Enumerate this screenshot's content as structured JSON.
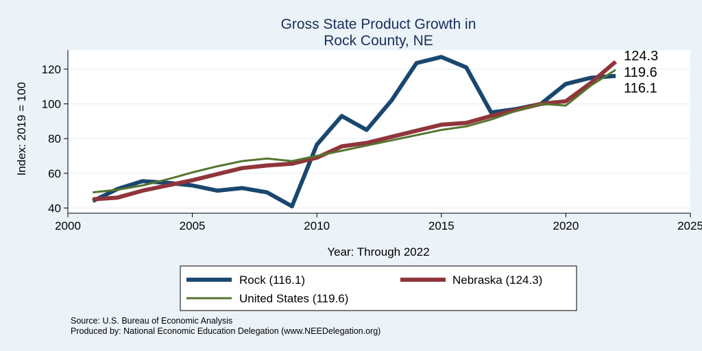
{
  "chart_data": {
    "type": "line",
    "title": [
      "Gross State Product Growth in",
      "Rock County, NE"
    ],
    "xlabel": "Year: Through 2022",
    "ylabel": "Index: 2019 = 100",
    "xlim": [
      2000,
      2025
    ],
    "ylim": [
      37,
      131
    ],
    "xticks": [
      "2000",
      "2005",
      "2010",
      "2015",
      "2020",
      "2025"
    ],
    "yticks": [
      "40",
      "60",
      "80",
      "100",
      "120"
    ],
    "grid": true,
    "legend_position": "bottom",
    "x": [
      2001,
      2002,
      2003,
      2004,
      2005,
      2006,
      2007,
      2008,
      2009,
      2010,
      2011,
      2012,
      2013,
      2014,
      2015,
      2016,
      2017,
      2018,
      2019,
      2020,
      2021,
      2022
    ],
    "series": [
      {
        "name": "Rock",
        "legend_label": "Rock  (116.1)",
        "color": "#1a476f",
        "values": [
          44,
          51,
          55.5,
          54.5,
          53,
          50,
          51.5,
          49,
          41,
          76.5,
          93,
          85,
          102,
          123.5,
          127,
          121,
          95,
          97,
          100,
          111.5,
          115,
          116.1
        ]
      },
      {
        "name": "Nebraska",
        "legend_label": "Nebraska (124.3)",
        "color": "#90353b",
        "values": [
          45,
          46,
          50,
          53,
          56,
          59.5,
          63,
          64.5,
          65.5,
          69,
          75.5,
          77.5,
          81,
          84.5,
          88,
          89,
          93,
          96.5,
          100,
          101.5,
          112,
          124.3
        ]
      },
      {
        "name": "United States",
        "legend_label": "United States (119.6)",
        "color": "#55752f",
        "values": [
          49,
          50.5,
          53,
          56.5,
          60.5,
          64,
          67,
          68.5,
          67,
          70,
          73,
          76,
          79,
          82,
          85,
          87,
          91,
          96,
          100,
          99,
          110.5,
          119.6
        ]
      }
    ],
    "end_labels": [
      "124.3",
      "119.6",
      "116.1"
    ],
    "end_label_values": [
      124.3,
      119.6,
      116.1
    ]
  },
  "notes": {
    "source": "Source: U.S. Bureau of Economic Analysis",
    "produced_by": "Produced by: National Economic Education Delegation (www.NEEDelegation.org)"
  }
}
